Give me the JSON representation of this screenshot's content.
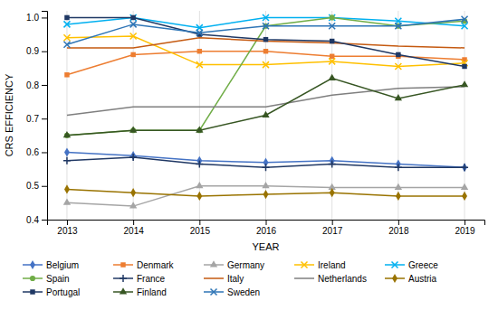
{
  "chart_data": {
    "type": "line",
    "x": [
      2013,
      2014,
      2015,
      2016,
      2017,
      2018,
      2019
    ],
    "series": [
      {
        "name": "Belgium",
        "color": "#4472C4",
        "marker": "diamond",
        "values": [
          0.6,
          0.59,
          0.575,
          0.57,
          0.575,
          0.565,
          0.555
        ]
      },
      {
        "name": "Denmark",
        "color": "#ED7D31",
        "marker": "square",
        "values": [
          0.83,
          0.89,
          0.9,
          0.9,
          0.885,
          0.885,
          0.875
        ]
      },
      {
        "name": "Germany",
        "color": "#A5A5A5",
        "marker": "triangle",
        "values": [
          0.45,
          0.44,
          0.5,
          0.5,
          0.495,
          0.495,
          0.495
        ]
      },
      {
        "name": "Ireland",
        "color": "#FFC000",
        "marker": "x",
        "values": [
          0.94,
          0.945,
          0.86,
          0.86,
          0.87,
          0.855,
          0.865
        ]
      },
      {
        "name": "Greece",
        "color": "#00B0F0",
        "marker": "x",
        "values": [
          0.98,
          1.0,
          0.97,
          1.0,
          1.0,
          0.99,
          0.975
        ]
      },
      {
        "name": "Spain",
        "color": "#70AD47",
        "marker": "circle",
        "values": [
          0.65,
          0.665,
          0.665,
          0.975,
          1.0,
          0.975,
          0.99
        ]
      },
      {
        "name": "France",
        "color": "#203864",
        "marker": "plus",
        "values": [
          0.575,
          0.585,
          0.565,
          0.555,
          0.565,
          0.555,
          0.555
        ]
      },
      {
        "name": "Italy",
        "color": "#C55A11",
        "marker": "none",
        "values": [
          0.91,
          0.91,
          0.94,
          0.93,
          0.925,
          0.915,
          0.91
        ]
      },
      {
        "name": "Netherlands",
        "color": "#7F7F7F",
        "marker": "none",
        "values": [
          0.71,
          0.735,
          0.735,
          0.735,
          0.77,
          0.79,
          0.795
        ]
      },
      {
        "name": "Austria",
        "color": "#997300",
        "marker": "diamond",
        "values": [
          0.49,
          0.48,
          0.47,
          0.475,
          0.48,
          0.47,
          0.47
        ]
      },
      {
        "name": "Portugal",
        "color": "#1F3864",
        "marker": "square",
        "values": [
          1.0,
          1.0,
          0.95,
          0.935,
          0.93,
          0.89,
          0.855
        ]
      },
      {
        "name": "Finland",
        "color": "#375623",
        "marker": "triangle",
        "values": [
          0.65,
          0.665,
          0.665,
          0.71,
          0.82,
          0.76,
          0.8
        ]
      },
      {
        "name": "Sweden",
        "color": "#2E75B6",
        "marker": "x",
        "values": [
          0.92,
          0.98,
          0.955,
          0.975,
          0.975,
          0.975,
          0.995
        ]
      }
    ],
    "xlabel": "YEAR",
    "ylabel": "CRS EFFICIENCY",
    "xlim": [
      2012.7,
      2019.3
    ],
    "xticks": [
      2013,
      2014,
      2015,
      2016,
      2017,
      2018,
      2019
    ],
    "ylim": [
      0.4,
      1.02
    ],
    "yticks": [
      0.4,
      0.5,
      0.6,
      0.7,
      0.8,
      0.9,
      {
        "value": 1.0,
        "label": "1.0"
      }
    ],
    "grid": "x",
    "legend": "bottom"
  }
}
